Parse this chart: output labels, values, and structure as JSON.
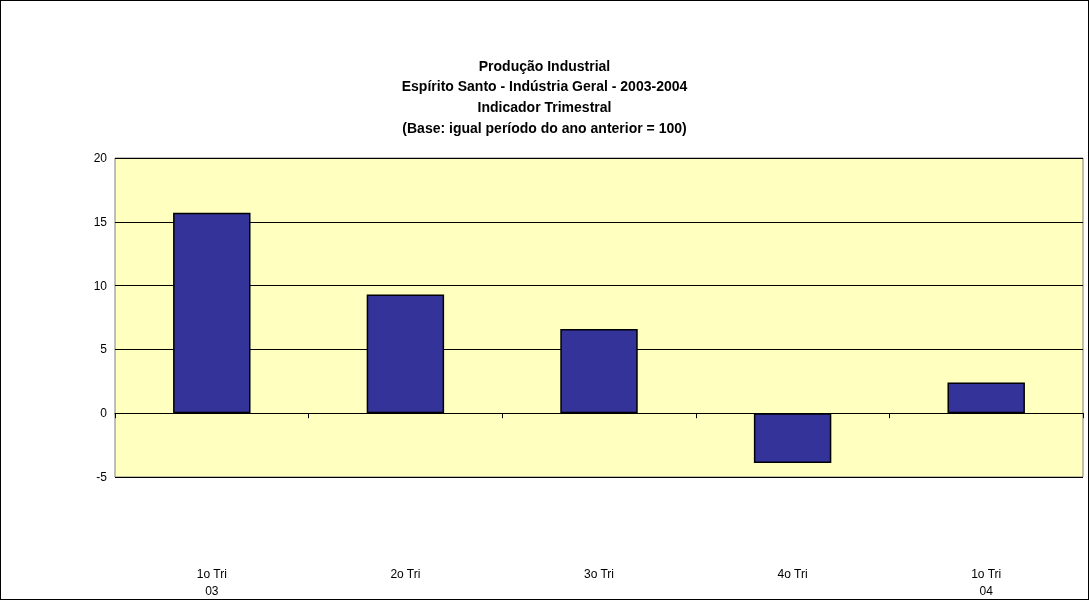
{
  "chart_data": {
    "type": "bar",
    "title": "Produção Industrial",
    "subtitle": "Espírito Santo - Indústria Geral - 2003-2004\nIndicador Trimestral\n(Base: igual período do ano anterior = 100)",
    "categories": [
      "1o Tri\n03",
      "2o Tri",
      "3o Tri",
      "4o Tri",
      "1o Tri\n04"
    ],
    "values": [
      15.7,
      9.3,
      6.6,
      -3.9,
      2.4
    ],
    "color": "#333399",
    "ylim": [
      -5,
      20
    ],
    "yticks": [
      -5,
      0,
      5,
      10,
      15,
      20
    ],
    "grid": "y"
  }
}
